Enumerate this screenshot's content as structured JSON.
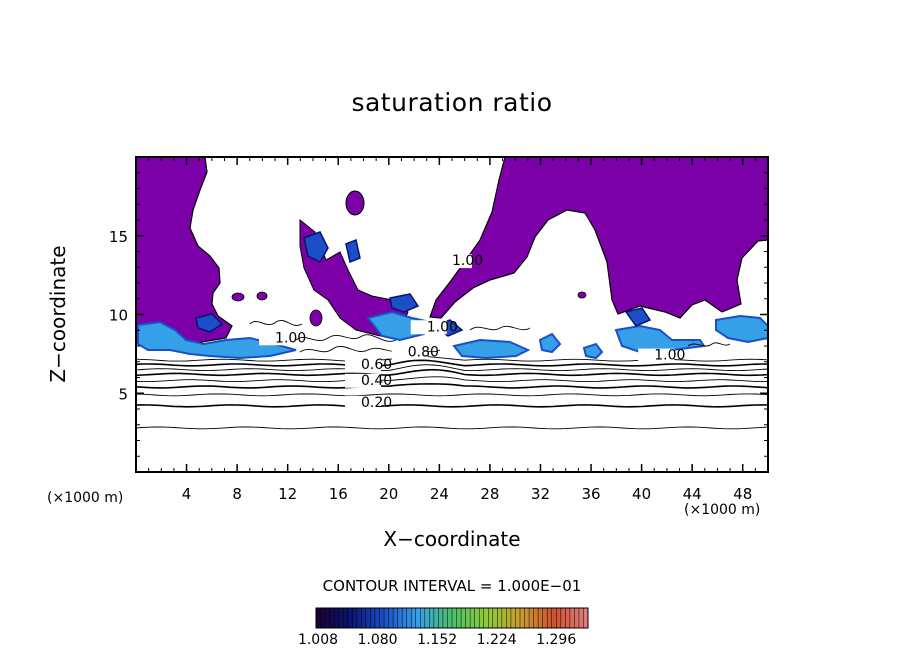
{
  "chart_data": {
    "type": "contour",
    "title": "saturation ratio",
    "xlabel": "X−coordinate",
    "ylabel": "Z−coordinate",
    "x_unit": "(×1000 m)",
    "z_unit": "(×1000 m)",
    "xlim": [
      0,
      50
    ],
    "ylim": [
      0,
      20
    ],
    "x_ticks": [
      4,
      8,
      12,
      16,
      20,
      24,
      28,
      32,
      36,
      40,
      44,
      48
    ],
    "y_ticks": [
      5,
      10,
      15
    ],
    "contour_interval_text": "CONTOUR INTERVAL = 1.000E−01",
    "contour_lines": [
      {
        "level": 0.1,
        "z": 2.8
      },
      {
        "level": 0.2,
        "z": 4.2
      },
      {
        "level": 0.3,
        "z": 4.9
      },
      {
        "level": 0.4,
        "z": 5.4
      },
      {
        "level": 0.5,
        "z": 5.8
      },
      {
        "level": 0.6,
        "z": 6.2
      },
      {
        "level": 0.7,
        "z": 6.5
      },
      {
        "level": 0.8,
        "z": 6.8
      },
      {
        "level": 0.9,
        "z": 7.1
      }
    ],
    "contour_labels": [
      {
        "text": "0.20",
        "x": 17.8,
        "z": 4.2
      },
      {
        "text": "0.40",
        "x": 17.8,
        "z": 5.6
      },
      {
        "text": "0.60",
        "x": 17.8,
        "z": 6.6
      },
      {
        "text": "0.80",
        "x": 21.5,
        "z": 7.4
      },
      {
        "text": "1.00",
        "x": 25.0,
        "z": 13.2
      },
      {
        "text": "1.00",
        "x": 23.0,
        "z": 9.0
      },
      {
        "text": "1.00",
        "x": 41.0,
        "z": 7.2
      },
      {
        "text": "1.00",
        "x": 11.0,
        "z": 8.3
      }
    ],
    "supersaturated_fill_color": "#7b00a8",
    "colorbar": {
      "colors": [
        "#1a0030",
        "#0a1470",
        "#1a4fc8",
        "#35a0e8",
        "#4cc06a",
        "#8ccc3a",
        "#c8a030",
        "#d05030",
        "#e08080"
      ],
      "ticks": [
        "1.008",
        "1.080",
        "1.152",
        "1.224",
        "1.296"
      ]
    }
  }
}
